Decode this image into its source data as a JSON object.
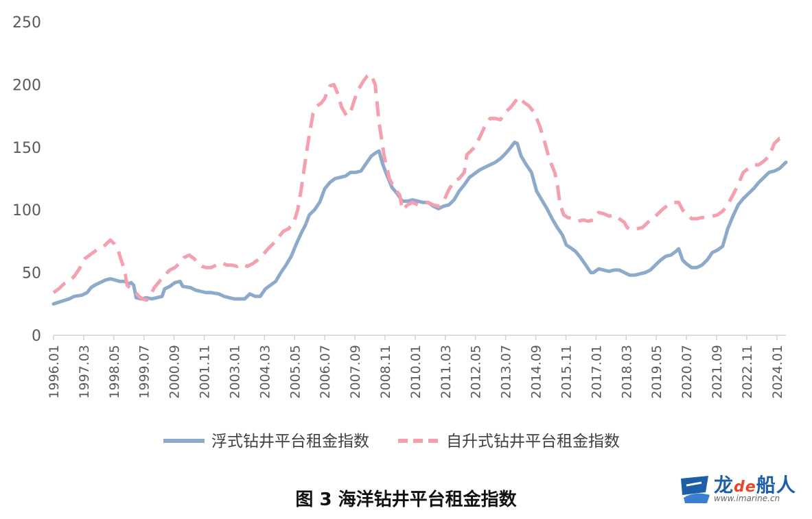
{
  "chart_data": {
    "type": "line",
    "ylim": [
      0,
      250
    ],
    "yticks": [
      0,
      50,
      100,
      150,
      200,
      250
    ],
    "xlim": [
      1996.0,
      2024.35
    ],
    "xticks": [
      "1996.01",
      "1997.03",
      "1998.05",
      "1999.07",
      "2000.09",
      "2001.11",
      "2003.01",
      "2004.03",
      "2005.05",
      "2006.07",
      "2007.09",
      "2008.11",
      "2010.01",
      "2011.03",
      "2012.05",
      "2013.07",
      "2014.09",
      "2015.11",
      "2017.01",
      "2018.03",
      "2019.05",
      "2020.07",
      "2021.09",
      "2022.11",
      "2024.01"
    ],
    "legend_position": "bottom",
    "series": [
      {
        "name": "浮式钻井平台租金指数",
        "color": "#8eaacb",
        "style": "solid",
        "points": [
          [
            1996.0,
            25
          ],
          [
            1996.3,
            27
          ],
          [
            1996.6,
            29
          ],
          [
            1996.8,
            31
          ],
          [
            1997.1,
            32
          ],
          [
            1997.3,
            34
          ],
          [
            1997.45,
            38
          ],
          [
            1997.6,
            40
          ],
          [
            1997.8,
            42
          ],
          [
            1998.0,
            44
          ],
          [
            1998.2,
            45
          ],
          [
            1998.4,
            44
          ],
          [
            1998.55,
            43
          ],
          [
            1998.75,
            43
          ],
          [
            1998.9,
            41
          ],
          [
            1999.0,
            42
          ],
          [
            1999.1,
            40
          ],
          [
            1999.2,
            30
          ],
          [
            1999.4,
            29
          ],
          [
            1999.6,
            30
          ],
          [
            1999.8,
            29
          ],
          [
            2000.0,
            30
          ],
          [
            2000.2,
            31
          ],
          [
            2000.3,
            37
          ],
          [
            2000.5,
            39
          ],
          [
            2000.7,
            42
          ],
          [
            2000.9,
            43
          ],
          [
            2001.0,
            39
          ],
          [
            2001.3,
            38
          ],
          [
            2001.5,
            36
          ],
          [
            2001.7,
            35
          ],
          [
            2001.9,
            34
          ],
          [
            2002.1,
            34
          ],
          [
            2002.4,
            33
          ],
          [
            2002.6,
            31
          ],
          [
            2002.8,
            30
          ],
          [
            2003.0,
            29
          ],
          [
            2003.2,
            29
          ],
          [
            2003.4,
            29
          ],
          [
            2003.6,
            33
          ],
          [
            2003.8,
            31
          ],
          [
            2004.0,
            31
          ],
          [
            2004.2,
            37
          ],
          [
            2004.4,
            40
          ],
          [
            2004.6,
            43
          ],
          [
            2004.8,
            50
          ],
          [
            2005.0,
            56
          ],
          [
            2005.2,
            63
          ],
          [
            2005.4,
            73
          ],
          [
            2005.6,
            82
          ],
          [
            2005.75,
            88
          ],
          [
            2005.9,
            96
          ],
          [
            2006.1,
            100
          ],
          [
            2006.3,
            106
          ],
          [
            2006.5,
            117
          ],
          [
            2006.7,
            122
          ],
          [
            2006.9,
            125
          ],
          [
            2007.1,
            126
          ],
          [
            2007.3,
            127
          ],
          [
            2007.5,
            130
          ],
          [
            2007.7,
            130
          ],
          [
            2007.9,
            131
          ],
          [
            2008.1,
            137
          ],
          [
            2008.3,
            143
          ],
          [
            2008.5,
            146
          ],
          [
            2008.6,
            147
          ],
          [
            2008.75,
            136
          ],
          [
            2008.9,
            128
          ],
          [
            2009.1,
            118
          ],
          [
            2009.3,
            113
          ],
          [
            2009.5,
            107
          ],
          [
            2009.7,
            107
          ],
          [
            2009.9,
            108
          ],
          [
            2010.1,
            107
          ],
          [
            2010.3,
            106
          ],
          [
            2010.5,
            106
          ],
          [
            2010.7,
            103
          ],
          [
            2010.9,
            101
          ],
          [
            2011.1,
            103
          ],
          [
            2011.3,
            104
          ],
          [
            2011.5,
            108
          ],
          [
            2011.7,
            115
          ],
          [
            2011.9,
            120
          ],
          [
            2012.1,
            126
          ],
          [
            2012.3,
            129
          ],
          [
            2012.5,
            132
          ],
          [
            2012.7,
            134
          ],
          [
            2012.9,
            136
          ],
          [
            2013.1,
            138
          ],
          [
            2013.3,
            141
          ],
          [
            2013.5,
            145
          ],
          [
            2013.7,
            150
          ],
          [
            2013.85,
            154
          ],
          [
            2013.95,
            153
          ],
          [
            2014.1,
            143
          ],
          [
            2014.3,
            136
          ],
          [
            2014.5,
            130
          ],
          [
            2014.7,
            115
          ],
          [
            2014.9,
            108
          ],
          [
            2015.1,
            101
          ],
          [
            2015.3,
            93
          ],
          [
            2015.5,
            86
          ],
          [
            2015.7,
            80
          ],
          [
            2015.85,
            72
          ],
          [
            2016.0,
            70
          ],
          [
            2016.2,
            67
          ],
          [
            2016.4,
            62
          ],
          [
            2016.6,
            56
          ],
          [
            2016.8,
            50
          ],
          [
            2016.9,
            50
          ],
          [
            2017.1,
            53
          ],
          [
            2017.3,
            52
          ],
          [
            2017.5,
            51
          ],
          [
            2017.7,
            52
          ],
          [
            2017.9,
            52
          ],
          [
            2018.1,
            50
          ],
          [
            2018.3,
            48
          ],
          [
            2018.5,
            48
          ],
          [
            2018.7,
            49
          ],
          [
            2018.9,
            50
          ],
          [
            2019.1,
            52
          ],
          [
            2019.3,
            56
          ],
          [
            2019.5,
            60
          ],
          [
            2019.7,
            63
          ],
          [
            2019.9,
            64
          ],
          [
            2020.1,
            67
          ],
          [
            2020.2,
            69
          ],
          [
            2020.35,
            60
          ],
          [
            2020.5,
            57
          ],
          [
            2020.7,
            54
          ],
          [
            2020.9,
            54
          ],
          [
            2021.1,
            56
          ],
          [
            2021.3,
            60
          ],
          [
            2021.5,
            66
          ],
          [
            2021.7,
            68
          ],
          [
            2021.9,
            71
          ],
          [
            2022.1,
            85
          ],
          [
            2022.3,
            95
          ],
          [
            2022.5,
            104
          ],
          [
            2022.7,
            109
          ],
          [
            2022.9,
            113
          ],
          [
            2023.1,
            117
          ],
          [
            2023.3,
            122
          ],
          [
            2023.5,
            126
          ],
          [
            2023.7,
            130
          ],
          [
            2023.9,
            131
          ],
          [
            2024.1,
            133
          ],
          [
            2024.35,
            138
          ]
        ]
      },
      {
        "name": "自升式钻井平台租金指数",
        "color": "#f4a0ae",
        "style": "dashed",
        "points": [
          [
            1996.0,
            34
          ],
          [
            1996.2,
            37
          ],
          [
            1996.4,
            41
          ],
          [
            1996.6,
            43
          ],
          [
            1996.8,
            47
          ],
          [
            1997.0,
            53
          ],
          [
            1997.2,
            61
          ],
          [
            1997.4,
            64
          ],
          [
            1997.6,
            67
          ],
          [
            1997.8,
            70
          ],
          [
            1998.0,
            72
          ],
          [
            1998.1,
            74
          ],
          [
            1998.2,
            76
          ],
          [
            1998.35,
            73
          ],
          [
            1998.5,
            68
          ],
          [
            1998.6,
            61
          ],
          [
            1998.75,
            52
          ],
          [
            1998.85,
            40
          ],
          [
            1998.95,
            38
          ],
          [
            1999.15,
            35
          ],
          [
            1999.3,
            31
          ],
          [
            1999.45,
            29
          ],
          [
            1999.6,
            28
          ],
          [
            1999.75,
            32
          ],
          [
            1999.9,
            38
          ],
          [
            2000.1,
            43
          ],
          [
            2000.3,
            48
          ],
          [
            2000.5,
            52
          ],
          [
            2000.7,
            54
          ],
          [
            2000.9,
            58
          ],
          [
            2001.05,
            62
          ],
          [
            2001.25,
            64
          ],
          [
            2001.45,
            61
          ],
          [
            2001.6,
            57
          ],
          [
            2001.75,
            55
          ],
          [
            2001.9,
            54
          ],
          [
            2002.1,
            54
          ],
          [
            2002.3,
            56
          ],
          [
            2002.5,
            58
          ],
          [
            2002.7,
            56
          ],
          [
            2002.9,
            56
          ],
          [
            2003.1,
            55
          ],
          [
            2003.3,
            57
          ],
          [
            2003.5,
            55
          ],
          [
            2003.7,
            57
          ],
          [
            2003.9,
            60
          ],
          [
            2004.1,
            64
          ],
          [
            2004.3,
            69
          ],
          [
            2004.5,
            73
          ],
          [
            2004.7,
            78
          ],
          [
            2004.9,
            83
          ],
          [
            2005.1,
            85
          ],
          [
            2005.3,
            90
          ],
          [
            2005.45,
            100
          ],
          [
            2005.6,
            118
          ],
          [
            2005.75,
            140
          ],
          [
            2005.9,
            160
          ],
          [
            2006.05,
            177
          ],
          [
            2006.2,
            183
          ],
          [
            2006.35,
            185
          ],
          [
            2006.5,
            189
          ],
          [
            2006.6,
            195
          ],
          [
            2006.7,
            199
          ],
          [
            2006.85,
            200
          ],
          [
            2007.0,
            193
          ],
          [
            2007.15,
            182
          ],
          [
            2007.35,
            175
          ],
          [
            2007.5,
            178
          ],
          [
            2007.65,
            188
          ],
          [
            2007.8,
            196
          ],
          [
            2008.0,
            203
          ],
          [
            2008.15,
            207
          ],
          [
            2008.3,
            208
          ],
          [
            2008.45,
            200
          ],
          [
            2008.6,
            170
          ],
          [
            2008.8,
            143
          ],
          [
            2009.0,
            125
          ],
          [
            2009.2,
            117
          ],
          [
            2009.4,
            112
          ],
          [
            2009.5,
            100
          ],
          [
            2009.7,
            104
          ],
          [
            2009.9,
            106
          ],
          [
            2010.1,
            104
          ],
          [
            2010.3,
            105
          ],
          [
            2010.5,
            106
          ],
          [
            2010.7,
            104
          ],
          [
            2010.9,
            103
          ],
          [
            2011.1,
            107
          ],
          [
            2011.3,
            116
          ],
          [
            2011.5,
            123
          ],
          [
            2011.7,
            125
          ],
          [
            2011.9,
            130
          ],
          [
            2012.0,
            144
          ],
          [
            2012.15,
            147
          ],
          [
            2012.3,
            150
          ],
          [
            2012.5,
            158
          ],
          [
            2012.7,
            167
          ],
          [
            2012.9,
            173
          ],
          [
            2013.1,
            173
          ],
          [
            2013.3,
            172
          ],
          [
            2013.5,
            178
          ],
          [
            2013.7,
            182
          ],
          [
            2013.85,
            186
          ],
          [
            2014.0,
            190
          ],
          [
            2014.2,
            186
          ],
          [
            2014.4,
            183
          ],
          [
            2014.6,
            178
          ],
          [
            2014.8,
            168
          ],
          [
            2015.0,
            155
          ],
          [
            2015.2,
            140
          ],
          [
            2015.4,
            130
          ],
          [
            2015.5,
            121
          ],
          [
            2015.6,
            105
          ],
          [
            2015.75,
            96
          ],
          [
            2015.9,
            94
          ],
          [
            2016.1,
            93
          ],
          [
            2016.3,
            91
          ],
          [
            2016.5,
            92
          ],
          [
            2016.7,
            91
          ],
          [
            2016.9,
            92
          ],
          [
            2017.1,
            98
          ],
          [
            2017.3,
            97
          ],
          [
            2017.5,
            95
          ],
          [
            2017.7,
            96
          ],
          [
            2017.9,
            93
          ],
          [
            2018.1,
            90
          ],
          [
            2018.2,
            86
          ],
          [
            2018.4,
            84
          ],
          [
            2018.6,
            85
          ],
          [
            2018.8,
            86
          ],
          [
            2019.0,
            90
          ],
          [
            2019.2,
            93
          ],
          [
            2019.4,
            97
          ],
          [
            2019.6,
            101
          ],
          [
            2019.8,
            104
          ],
          [
            2020.0,
            106
          ],
          [
            2020.2,
            106
          ],
          [
            2020.35,
            100
          ],
          [
            2020.5,
            97
          ],
          [
            2020.7,
            93
          ],
          [
            2020.9,
            93
          ],
          [
            2021.1,
            94
          ],
          [
            2021.3,
            94
          ],
          [
            2021.5,
            95
          ],
          [
            2021.7,
            96
          ],
          [
            2021.9,
            99
          ],
          [
            2022.1,
            104
          ],
          [
            2022.3,
            112
          ],
          [
            2022.5,
            120
          ],
          [
            2022.7,
            130
          ],
          [
            2022.9,
            133
          ],
          [
            2023.1,
            136
          ],
          [
            2023.3,
            136
          ],
          [
            2023.5,
            139
          ],
          [
            2023.7,
            143
          ],
          [
            2023.9,
            153
          ],
          [
            2024.1,
            157
          ],
          [
            2024.25,
            157
          ],
          [
            2024.35,
            159
          ]
        ]
      }
    ]
  },
  "caption": "图 3 海洋钻井平台租金指数",
  "watermark": {
    "brand_main": "龙",
    "brand_de": "de",
    "brand_tail": "船人",
    "url": "www.imarine.cn",
    "brand_color": "#1d5ea8"
  }
}
